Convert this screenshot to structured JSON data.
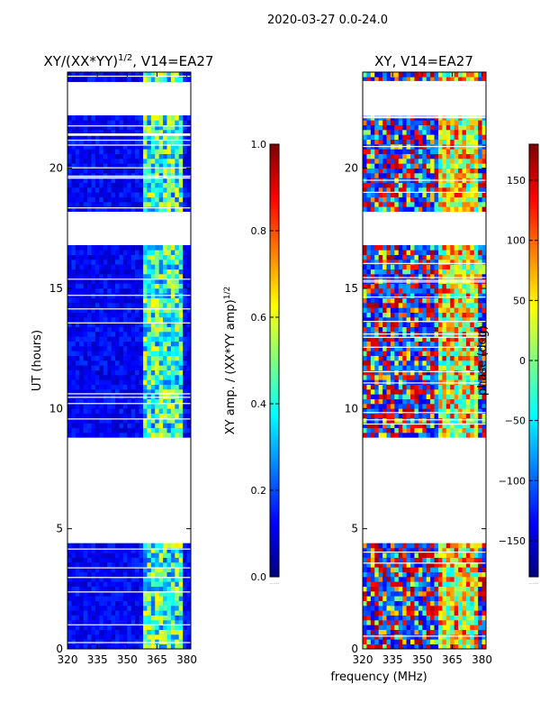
{
  "figure": {
    "suptitle": "2020-03-27 0.0-24.0",
    "xlabel": "frequency (MHz)"
  },
  "colorbar_left": {
    "label": "XY amp. / (XX*YY amp)",
    "label_sup": "1/2",
    "ticks": [
      "0.0",
      "0.2",
      "0.4",
      "0.6",
      "0.8",
      "1.0"
    ],
    "dots": "......"
  },
  "colorbar_right": {
    "label": "phase (deg)",
    "ticks": [
      "150",
      "100",
      "50",
      "0",
      "−50",
      "−100",
      "−150"
    ],
    "dots": "......"
  },
  "chart_data": [
    {
      "type": "heatmap",
      "title": "XY/(XX*YY)",
      "title_sup": "1/2",
      "title_suffix": ", V14=EA27",
      "xlabel": "",
      "ylabel": "UT (hours)",
      "xlim": [
        320,
        382
      ],
      "ylim": [
        0,
        24
      ],
      "xticks": [
        320,
        335,
        350,
        365,
        380
      ],
      "xticklabels": [
        "320",
        "335",
        "350",
        "365",
        "380"
      ],
      "yticks": [
        0,
        5,
        10,
        15,
        20
      ],
      "yticklabels": [
        "0",
        "5",
        "10",
        "15",
        "20"
      ],
      "colormap": "jet",
      "value_range": [
        0.0,
        1.0
      ],
      "data_gaps_ut": [
        [
          4.5,
          8.9
        ],
        [
          16.8,
          18.3
        ],
        [
          22.3,
          23.6
        ]
      ],
      "bright_band_mhz": [
        359,
        378
      ]
    },
    {
      "type": "heatmap",
      "title": "XY, V14=EA27",
      "xlabel": "",
      "ylabel": "",
      "xlim": [
        320,
        382
      ],
      "ylim": [
        0,
        24
      ],
      "xticks": [
        320,
        335,
        350,
        365,
        380
      ],
      "xticklabels": [
        "320",
        "335",
        "350",
        "365",
        "380"
      ],
      "yticks": [
        0,
        5,
        10,
        15,
        20
      ],
      "yticklabels": [
        "0",
        "5",
        "10",
        "15",
        "20"
      ],
      "colormap": "jet",
      "value_range": [
        -180,
        180
      ],
      "data_gaps_ut": [
        [
          4.5,
          8.9
        ],
        [
          16.8,
          18.3
        ],
        [
          22.3,
          23.6
        ]
      ],
      "bright_band_mhz": [
        359,
        378
      ]
    }
  ]
}
